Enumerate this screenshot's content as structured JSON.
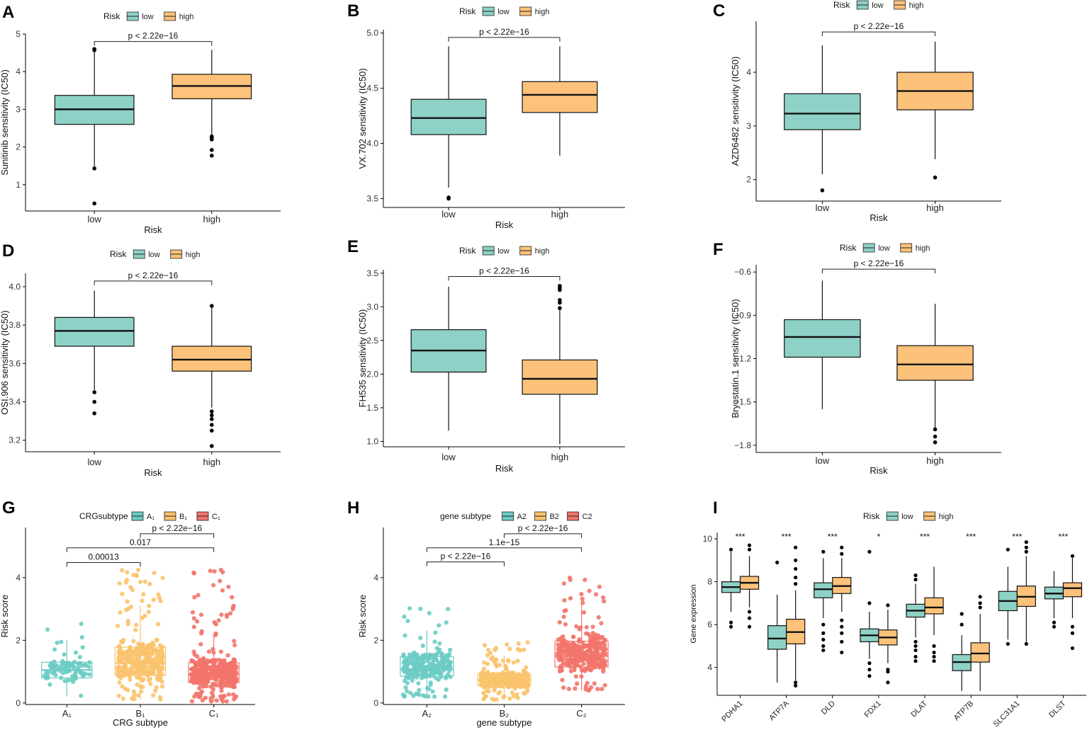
{
  "chart_data": [
    {
      "panel": "A",
      "type": "boxplot",
      "legend": {
        "title": "Risk",
        "entries": [
          "low",
          "high"
        ],
        "colors": [
          "#8ed1c6",
          "#fcc27a"
        ]
      },
      "xlabel": "Risk",
      "ylabel": "Sunitinib sensitivity (IC50)",
      "ylim": [
        0.3,
        5.0
      ],
      "yticks": [
        1,
        2,
        3,
        4,
        5
      ],
      "categories": [
        "low",
        "high"
      ],
      "boxes": [
        {
          "q1": 2.6,
          "median": 3.0,
          "q3": 3.37,
          "whisker_low": 1.45,
          "whisker_high": 4.57,
          "outliers": [
            0.5,
            1.43,
            4.57,
            4.6
          ]
        },
        {
          "q1": 3.28,
          "median": 3.62,
          "q3": 3.93,
          "whisker_low": 2.3,
          "whisker_high": 4.58,
          "outliers": [
            1.77,
            1.92,
            2.2,
            2.25,
            2.28
          ]
        }
      ],
      "comparisons": [
        {
          "from": 0,
          "to": 1,
          "y": 4.8,
          "label": "p < 2.22e−16"
        }
      ]
    },
    {
      "panel": "B",
      "type": "boxplot",
      "legend": {
        "title": "Risk",
        "entries": [
          "low",
          "high"
        ],
        "colors": [
          "#8ed1c6",
          "#fcc27a"
        ]
      },
      "xlabel": "Risk",
      "ylabel": "VX.702 sensitivity (IC50)",
      "ylim": [
        3.42,
        5.03
      ],
      "yticks": [
        3.5,
        4.0,
        4.5,
        5.0
      ],
      "categories": [
        "low",
        "high"
      ],
      "boxes": [
        {
          "q1": 4.08,
          "median": 4.23,
          "q3": 4.4,
          "whisker_low": 3.6,
          "whisker_high": 4.88,
          "outliers": [
            3.5,
            3.51
          ]
        },
        {
          "q1": 4.28,
          "median": 4.44,
          "q3": 4.56,
          "whisker_low": 3.89,
          "whisker_high": 4.88,
          "outliers": []
        }
      ],
      "comparisons": [
        {
          "from": 0,
          "to": 1,
          "y": 4.96,
          "label": "p < 2.22e−16"
        }
      ]
    },
    {
      "panel": "C",
      "type": "boxplot",
      "legend": {
        "title": "Risk",
        "entries": [
          "low",
          "high"
        ],
        "colors": [
          "#8ed1c6",
          "#fcc27a"
        ]
      },
      "xlabel": "Risk",
      "ylabel": "AZD6482 sensitivity (IC50)",
      "ylim": [
        1.6,
        4.95
      ],
      "yticks": [
        2,
        3,
        4
      ],
      "categories": [
        "low",
        "high"
      ],
      "boxes": [
        {
          "q1": 2.93,
          "median": 3.23,
          "q3": 3.6,
          "whisker_low": 2.1,
          "whisker_high": 4.5,
          "outliers": [
            1.8
          ]
        },
        {
          "q1": 3.3,
          "median": 3.65,
          "q3": 4.0,
          "whisker_low": 2.38,
          "whisker_high": 4.57,
          "outliers": [
            2.04
          ]
        }
      ],
      "comparisons": [
        {
          "from": 0,
          "to": 1,
          "y": 4.75,
          "label": "p < 2.22e−16"
        }
      ]
    },
    {
      "panel": "D",
      "type": "boxplot",
      "legend": {
        "title": "Risk",
        "entries": [
          "low",
          "high"
        ],
        "colors": [
          "#8ed1c6",
          "#fcc27a"
        ]
      },
      "xlabel": "Risk",
      "ylabel": "OSI.906 sensitivity (IC50)",
      "ylim": [
        3.14,
        4.07
      ],
      "yticks": [
        3.2,
        3.4,
        3.6,
        3.8,
        4.0
      ],
      "categories": [
        "low",
        "high"
      ],
      "boxes": [
        {
          "q1": 3.69,
          "median": 3.77,
          "q3": 3.84,
          "whisker_low": 3.46,
          "whisker_high": 3.98,
          "outliers": [
            3.34,
            3.4,
            3.45
          ]
        },
        {
          "q1": 3.56,
          "median": 3.62,
          "q3": 3.69,
          "whisker_low": 3.37,
          "whisker_high": 3.9,
          "outliers": [
            3.17,
            3.25,
            3.28,
            3.31,
            3.33,
            3.35,
            3.9
          ]
        }
      ],
      "comparisons": [
        {
          "from": 0,
          "to": 1,
          "y": 4.03,
          "label": "p < 2.22e−16"
        }
      ]
    },
    {
      "panel": "E",
      "type": "boxplot",
      "legend": {
        "title": "Risk",
        "entries": [
          "low",
          "high"
        ],
        "colors": [
          "#8ed1c6",
          "#fcc27a"
        ]
      },
      "xlabel": "Risk",
      "ylabel": "FH535 sensitivity (IC50)",
      "ylim": [
        0.92,
        3.55
      ],
      "yticks": [
        1.0,
        1.5,
        2.0,
        2.5,
        3.0,
        3.5
      ],
      "categories": [
        "low",
        "high"
      ],
      "boxes": [
        {
          "q1": 2.03,
          "median": 2.35,
          "q3": 2.66,
          "whisker_low": 1.16,
          "whisker_high": 3.3,
          "outliers": []
        },
        {
          "q1": 1.7,
          "median": 1.93,
          "q3": 2.21,
          "whisker_low": 0.96,
          "whisker_high": 2.95,
          "outliers": [
            2.98,
            3.06,
            3.1,
            3.25,
            3.28,
            3.31
          ]
        }
      ],
      "comparisons": [
        {
          "from": 0,
          "to": 1,
          "y": 3.45,
          "label": "p < 2.22e−16"
        }
      ]
    },
    {
      "panel": "F",
      "type": "boxplot",
      "legend": {
        "title": "Risk",
        "entries": [
          "low",
          "high"
        ],
        "colors": [
          "#8ed1c6",
          "#fcc27a"
        ]
      },
      "xlabel": "Risk",
      "ylabel": "Bryostatin.1 sensitivity (IC50)",
      "ylim": [
        -1.85,
        -0.55
      ],
      "yticks": [
        -1.8,
        -1.5,
        -1.2,
        -0.9,
        -0.6
      ],
      "categories": [
        "low",
        "high"
      ],
      "boxes": [
        {
          "q1": -1.19,
          "median": -1.05,
          "q3": -0.93,
          "whisker_low": -1.55,
          "whisker_high": -0.66,
          "outliers": []
        },
        {
          "q1": -1.35,
          "median": -1.24,
          "q3": -1.11,
          "whisker_low": -1.68,
          "whisker_high": -0.82,
          "outliers": [
            -1.69,
            -1.74,
            -1.78
          ]
        }
      ],
      "comparisons": [
        {
          "from": 0,
          "to": 1,
          "y": -0.58,
          "label": "p < 2.22e−16"
        }
      ]
    },
    {
      "panel": "G",
      "type": "boxplot_jitter",
      "legend": {
        "title": "CRGsubtype",
        "entries": [
          "A₁",
          "B₁",
          "C₁"
        ],
        "colors": [
          "#6cccc4",
          "#f9c36d",
          "#f2746a"
        ]
      },
      "xlabel": "CRG subtype",
      "ylabel": "Risk score",
      "ylim": [
        -0.05,
        5.6
      ],
      "yticks": [
        0,
        2,
        4
      ],
      "categories": [
        "A₁",
        "B₁",
        "C₁"
      ],
      "boxes": [
        {
          "q1": 0.8,
          "median": 1.05,
          "q3": 1.3,
          "whisker_low": 0.2,
          "whisker_high": 2.0,
          "n": 90,
          "min": 0.2,
          "max": 2.8
        },
        {
          "q1": 0.88,
          "median": 1.27,
          "q3": 1.78,
          "whisker_low": 0.1,
          "whisker_high": 3.1,
          "n": 330,
          "min": 0.1,
          "max": 4.3
        },
        {
          "q1": 0.65,
          "median": 0.92,
          "q3": 1.28,
          "whisker_low": 0.05,
          "whisker_high": 2.2,
          "n": 420,
          "min": 0.05,
          "max": 4.25
        }
      ],
      "comparisons": [
        {
          "from": 1,
          "to": 2,
          "y": 5.4,
          "label": "p < 2.22e−16"
        },
        {
          "from": 0,
          "to": 2,
          "y": 4.95,
          "label": "0.017"
        },
        {
          "from": 0,
          "to": 1,
          "y": 4.48,
          "label": "0.00013"
        }
      ]
    },
    {
      "panel": "H",
      "type": "boxplot_jitter",
      "legend": {
        "title": "gene subtype",
        "entries": [
          "A2",
          "B2",
          "C2"
        ],
        "colors": [
          "#6cccc4",
          "#f9c36d",
          "#f2746a"
        ]
      },
      "xlabel": "gene subtype",
      "ylabel": "Risk score",
      "ylim": [
        -0.05,
        5.6
      ],
      "yticks": [
        0,
        2,
        4
      ],
      "categories": [
        "A₂",
        "B₂",
        "C₂"
      ],
      "boxes": [
        {
          "q1": 0.85,
          "median": 1.08,
          "q3": 1.48,
          "whisker_low": 0.2,
          "whisker_high": 2.3,
          "n": 260,
          "min": 0.2,
          "max": 3.05
        },
        {
          "q1": 0.55,
          "median": 0.72,
          "q3": 0.92,
          "whisker_low": 0.1,
          "whisker_high": 1.5,
          "n": 380,
          "min": 0.1,
          "max": 1.95
        },
        {
          "q1": 1.15,
          "median": 1.5,
          "q3": 1.97,
          "whisker_low": 0.4,
          "whisker_high": 3.2,
          "n": 330,
          "min": 0.4,
          "max": 4.28
        }
      ],
      "comparisons": [
        {
          "from": 1,
          "to": 2,
          "y": 5.4,
          "label": "p < 2.22e−16"
        },
        {
          "from": 0,
          "to": 2,
          "y": 4.95,
          "label": "1.1e−15"
        },
        {
          "from": 0,
          "to": 1,
          "y": 4.5,
          "label": "p < 2.22e−16"
        }
      ]
    },
    {
      "panel": "I",
      "type": "grouped_boxplot",
      "legend": {
        "title": "Risk",
        "entries": [
          "low",
          "high"
        ],
        "colors": [
          "#8ed1c6",
          "#fcc27a"
        ]
      },
      "xlabel": "",
      "ylabel": "Gene expression",
      "ylim": [
        2.7,
        10.3
      ],
      "yticks": [
        4,
        6,
        8,
        10
      ],
      "categories": [
        "PDHA1",
        "ATP7A",
        "DLD",
        "FDX1",
        "DLAT",
        "ATP7B",
        "SLC31A1",
        "DLST"
      ],
      "significance": [
        "***",
        "***",
        "***",
        "*",
        "***",
        "***",
        "***",
        "***"
      ],
      "series": [
        {
          "name": "low",
          "boxes": [
            {
              "q1": 7.5,
              "median": 7.75,
              "q3": 8.0,
              "whisker_low": 6.6,
              "whisker_high": 9.4,
              "outliers": [
                5.9,
                6.1,
                9.5
              ]
            },
            {
              "q1": 4.85,
              "median": 5.35,
              "q3": 5.95,
              "whisker_low": 3.3,
              "whisker_high": 7.4,
              "outliers": [
                8.9
              ]
            },
            {
              "q1": 7.25,
              "median": 7.65,
              "q3": 7.95,
              "whisker_low": 6.3,
              "whisker_high": 9.1,
              "outliers": [
                4.8,
                5.0,
                5.3,
                5.6,
                6.0,
                9.4
              ]
            },
            {
              "q1": 5.2,
              "median": 5.5,
              "q3": 5.8,
              "whisker_low": 4.4,
              "whisker_high": 6.6,
              "outliers": [
                3.6,
                3.9,
                4.2,
                7.0,
                9.4
              ]
            },
            {
              "q1": 6.35,
              "median": 6.65,
              "q3": 6.95,
              "whisker_low": 5.4,
              "whisker_high": 7.9,
              "outliers": [
                4.3,
                4.5,
                4.8,
                5.0,
                5.2,
                8.1,
                8.3
              ]
            },
            {
              "q1": 3.85,
              "median": 4.25,
              "q3": 4.6,
              "whisker_low": 2.9,
              "whisker_high": 5.5,
              "outliers": [
                6.0,
                6.5
              ]
            },
            {
              "q1": 6.65,
              "median": 7.1,
              "q3": 7.55,
              "whisker_low": 5.3,
              "whisker_high": 8.7,
              "outliers": [
                5.1,
                9.5
              ]
            },
            {
              "q1": 7.2,
              "median": 7.45,
              "q3": 7.75,
              "whisker_low": 6.3,
              "whisker_high": 8.5,
              "outliers": [
                5.9,
                6.1
              ]
            }
          ]
        },
        {
          "name": "high",
          "boxes": [
            {
              "q1": 7.65,
              "median": 7.95,
              "q3": 8.25,
              "whisker_low": 6.8,
              "whisker_high": 9.2,
              "outliers": [
                5.9,
                6.3,
                6.6,
                9.5,
                9.7
              ]
            },
            {
              "q1": 5.1,
              "median": 5.65,
              "q3": 6.25,
              "whisker_low": 3.4,
              "whisker_high": 7.6,
              "outliers": [
                3.15,
                3.3,
                7.9,
                8.2,
                8.6,
                9.0,
                9.6
              ]
            },
            {
              "q1": 7.45,
              "median": 7.8,
              "q3": 8.2,
              "whisker_low": 6.6,
              "whisker_high": 9.1,
              "outliers": [
                4.7,
                5.2,
                5.6,
                5.9,
                6.2,
                9.3,
                9.6
              ]
            },
            {
              "q1": 5.05,
              "median": 5.4,
              "q3": 5.75,
              "whisker_low": 4.2,
              "whisker_high": 6.7,
              "outliers": [
                3.3,
                3.8,
                3.9,
                6.9
              ]
            },
            {
              "q1": 6.5,
              "median": 6.8,
              "q3": 7.25,
              "whisker_low": 5.5,
              "whisker_high": 8.7,
              "outliers": [
                4.3,
                4.5,
                4.7,
                5.0
              ]
            },
            {
              "q1": 4.25,
              "median": 4.65,
              "q3": 5.15,
              "whisker_low": 2.9,
              "whisker_high": 6.5,
              "outliers": [
                6.8,
                7.0,
                7.3
              ]
            },
            {
              "q1": 6.85,
              "median": 7.3,
              "q3": 7.8,
              "whisker_low": 5.2,
              "whisker_high": 9.2,
              "outliers": [
                5.1,
                9.4,
                9.6,
                9.85
              ]
            },
            {
              "q1": 7.3,
              "median": 7.7,
              "q3": 7.95,
              "whisker_low": 6.3,
              "whisker_high": 9.1,
              "outliers": [
                4.9,
                5.6,
                5.9,
                9.2
              ]
            }
          ]
        }
      ]
    }
  ]
}
